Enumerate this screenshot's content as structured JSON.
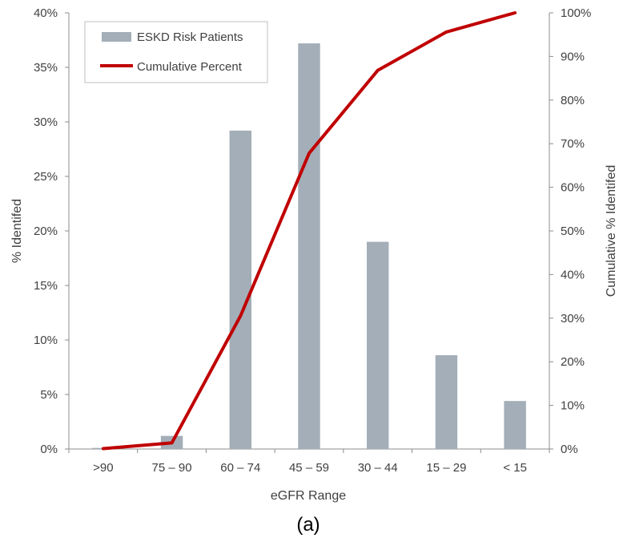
{
  "chart_data": {
    "type": "bar",
    "categories": [
      ">90",
      "75 – 90",
      "60 – 74",
      "45 – 59",
      "30 – 44",
      "15 – 29",
      "< 15"
    ],
    "series": [
      {
        "name": "ESKD Risk Patients",
        "type": "bar",
        "axis": "left",
        "values": [
          0.1,
          1.2,
          29.2,
          37.2,
          19.0,
          8.6,
          4.4
        ],
        "color": "#a3aeb8"
      },
      {
        "name": "Cumulative Percent",
        "type": "line",
        "axis": "right",
        "values": [
          0.1,
          1.4,
          30.5,
          67.8,
          86.8,
          95.6,
          100
        ],
        "color": "#c00000"
      }
    ],
    "xlabel": "eGFR Range",
    "ylabel": "% Identifed",
    "y2label": "Cumulative % Identifed",
    "ylim": [
      0,
      40
    ],
    "y2lim": [
      0,
      100
    ],
    "yticks": [
      "0%",
      "5%",
      "10%",
      "15%",
      "20%",
      "25%",
      "30%",
      "35%",
      "40%"
    ],
    "y2ticks": [
      "0%",
      "10%",
      "20%",
      "30%",
      "40%",
      "50%",
      "60%",
      "70%",
      "80%",
      "90%",
      "100%"
    ],
    "grid": false,
    "legend": "top-left",
    "caption": "(a)"
  }
}
